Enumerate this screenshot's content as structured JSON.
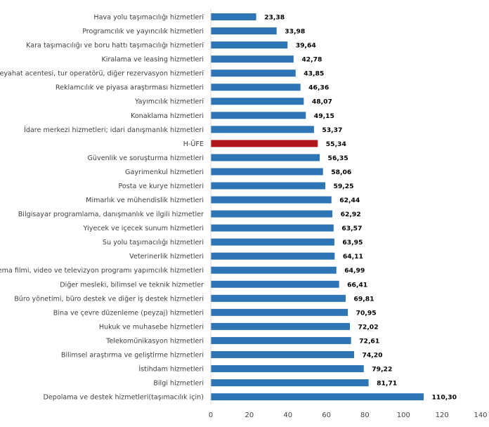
{
  "chart_data": {
    "type": "bar",
    "orientation": "horizontal",
    "title": "",
    "xlabel": "",
    "ylabel": "",
    "xlim": [
      0,
      140
    ],
    "xticks": [
      0,
      20,
      40,
      60,
      80,
      100,
      120,
      140
    ],
    "grid": false,
    "bar_color": "#2e75b6",
    "highlight_color": "#b0161c",
    "highlight_category": "H-ÜFE",
    "categories": [
      "Hava yolu taşımacılığı hizmetleri",
      "Programcılık ve yayıncılık hizmetleri",
      "Kara taşımacılığı ve boru hattı taşımacılığı hizmetleri",
      "Kiralama ve leasing hizmetleri",
      "Seyahat acentesi, tur operatörü, diğer rezervasyon hizmetleri",
      "Reklamcılık ve piyasa araştırması hizmetleri",
      "Yayımcılık hizmetleri",
      "Konaklama hizmetleri",
      "İdare merkezi hizmetleri; idari danışmanlık hizmetleri",
      "H-ÜFE",
      "Güvenlik ve soruşturma hizmetleri",
      "Gayrimenkul hizmetleri",
      "Posta ve kurye hizmetleri",
      "Mimarlık ve mühendislik hizmetleri",
      "Bilgisayar programlama, danışmanlık ve ilgili hizmetler",
      "Yiyecek ve içecek sunum hizmetleri",
      "Su yolu taşımacılığı hizmetleri",
      "Veterinerlik hizmetleri",
      "Sinema filmi, video ve televizyon programı yapımcılık hizmetleri",
      "Diğer mesleki, bilimsel ve teknik hizmetler",
      "Büro yönetimi, büro destek ve diğer iş destek hizmetleri",
      "Bina ve çevre düzenleme (peyzaj) hizmetleri",
      "Hukuk ve muhasebe hizmetleri",
      "Telekomünikasyon hizmetleri",
      "Bilimsel araştırma ve geliştirme hizmetleri",
      "İstihdam hizmetleri",
      "Bilgi hizmetleri",
      "Depolama ve destek hizmetleri(taşımacılık için)"
    ],
    "values": [
      23.38,
      33.98,
      39.64,
      42.78,
      43.85,
      46.36,
      48.07,
      49.15,
      53.37,
      55.34,
      56.35,
      58.06,
      59.25,
      62.44,
      62.92,
      63.57,
      63.95,
      64.11,
      64.99,
      66.41,
      69.81,
      70.95,
      72.02,
      72.61,
      74.2,
      79.22,
      81.71,
      110.3
    ],
    "data_labels": [
      "23,38",
      "33,98",
      "39,64",
      "42,78",
      "43,85",
      "46,36",
      "48,07",
      "49,15",
      "53,37",
      "55,34",
      "56,35",
      "58,06",
      "59,25",
      "62,44",
      "62,92",
      "63,57",
      "63,95",
      "64,11",
      "64,99",
      "66,41",
      "69,81",
      "70,95",
      "72,02",
      "72,61",
      "74,20",
      "79,22",
      "81,71",
      "110,30"
    ]
  }
}
